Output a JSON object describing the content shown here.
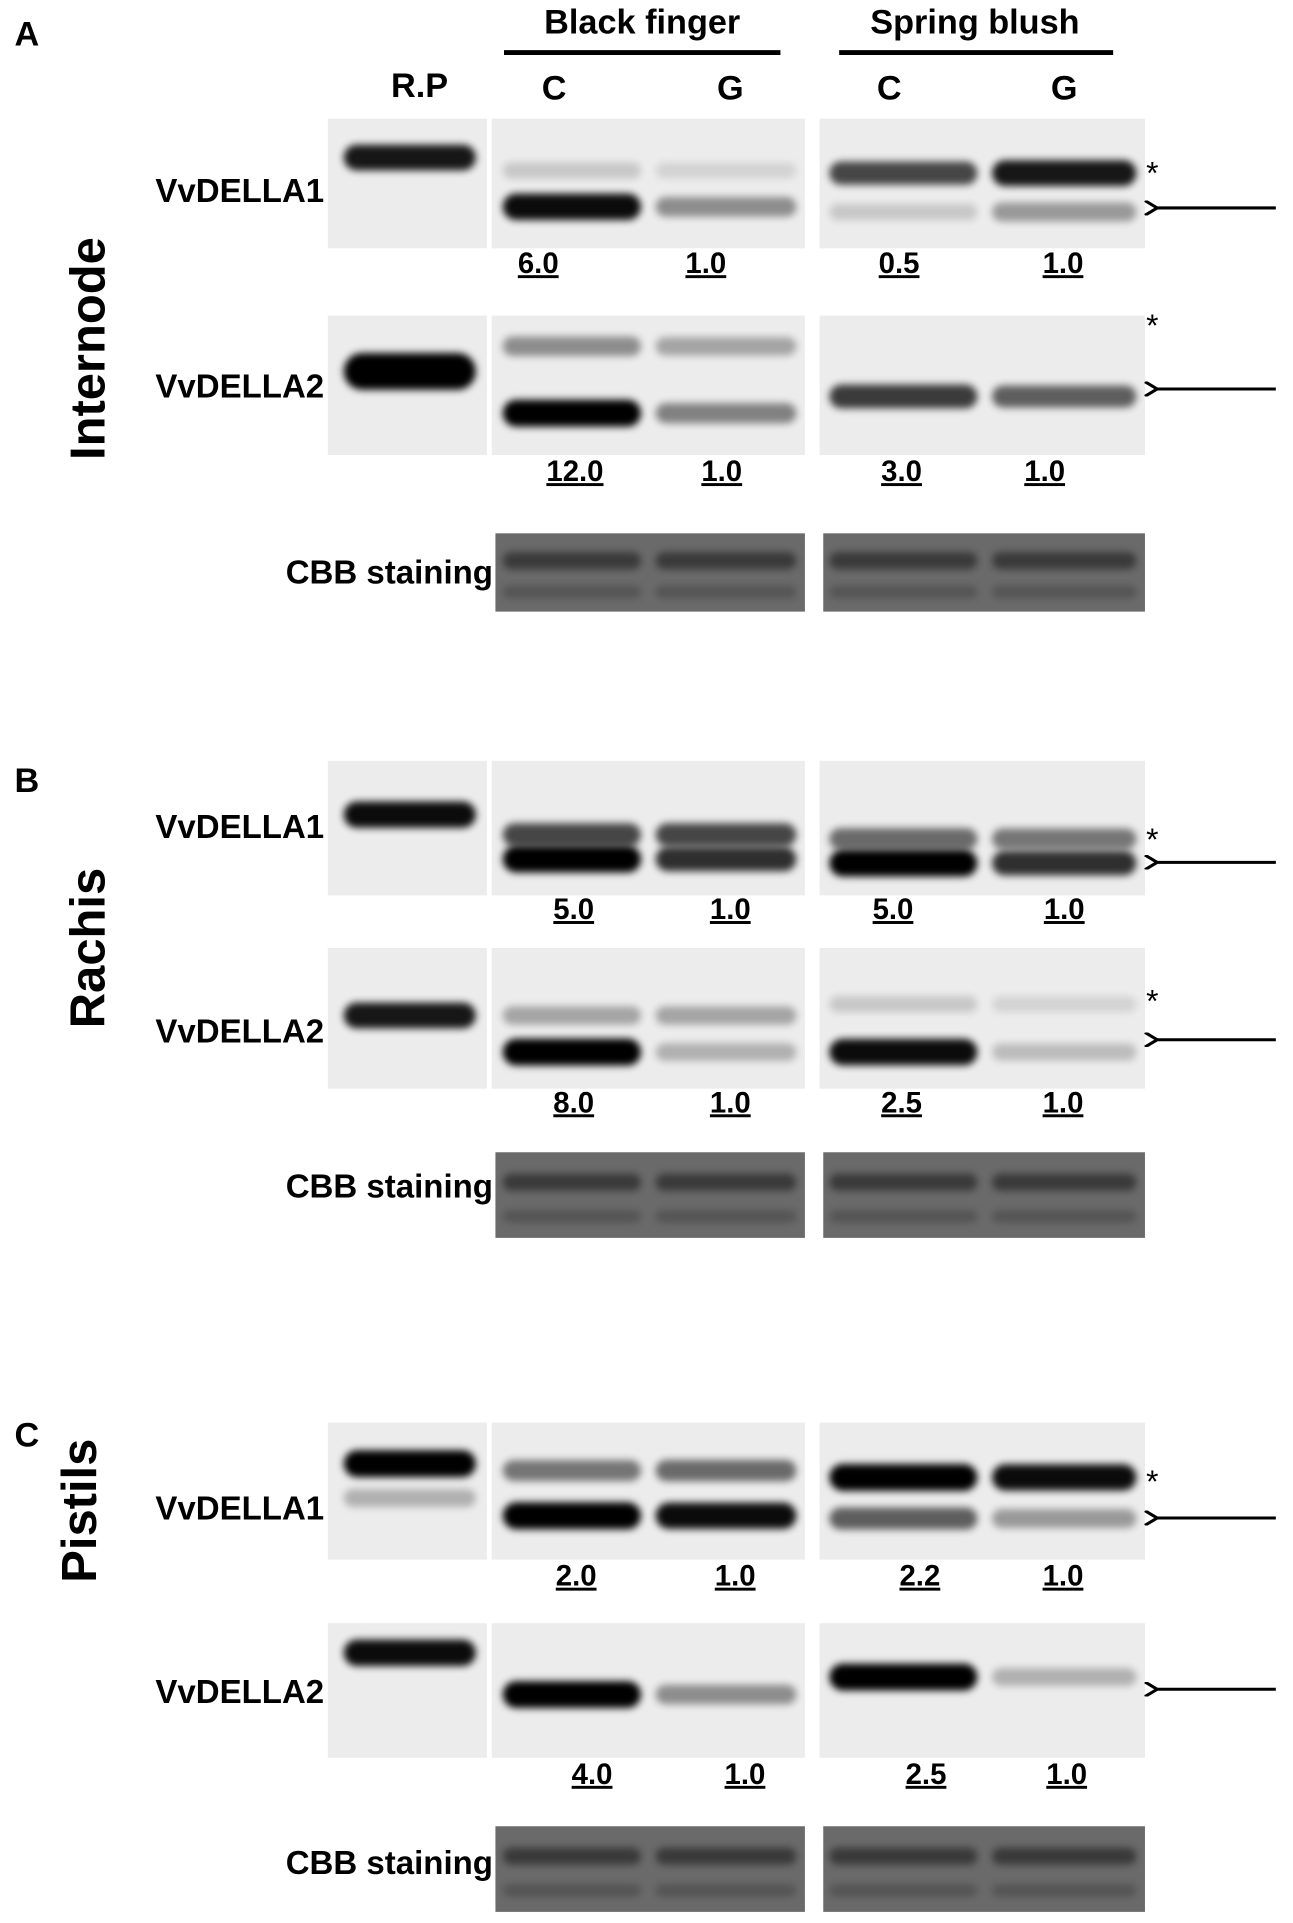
{
  "header": {
    "reference_lane": "R.P",
    "groups": [
      {
        "name": "Black finger",
        "lanes": [
          "C",
          "G"
        ]
      },
      {
        "name": "Spring blush",
        "lanes": [
          "C",
          "G"
        ]
      }
    ]
  },
  "marker": "*",
  "panels": [
    {
      "letter": "A",
      "tissue": "Internode",
      "rows": [
        {
          "label": "VvDELLA1",
          "values": [
            "6.0",
            "1.0",
            "0.5",
            "1.0"
          ]
        },
        {
          "label": "VvDELLA2",
          "values": [
            "12.0",
            "1.0",
            "3.0",
            "1.0"
          ]
        },
        {
          "label": "CBB staining"
        }
      ]
    },
    {
      "letter": "B",
      "tissue": "Rachis",
      "rows": [
        {
          "label": "VvDELLA1",
          "values": [
            "5.0",
            "1.0",
            "5.0",
            "1.0"
          ]
        },
        {
          "label": "VvDELLA2",
          "values": [
            "8.0",
            "1.0",
            "2.5",
            "1.0"
          ]
        },
        {
          "label": "CBB staining"
        }
      ]
    },
    {
      "letter": "C",
      "tissue": "Pistils",
      "rows": [
        {
          "label": "VvDELLA1",
          "values": [
            "2.0",
            "1.0",
            "2.2",
            "1.0"
          ]
        },
        {
          "label": "VvDELLA2",
          "values": [
            "4.0",
            "1.0",
            "2.5",
            "1.0"
          ]
        },
        {
          "label": "CBB staining"
        }
      ]
    }
  ]
}
